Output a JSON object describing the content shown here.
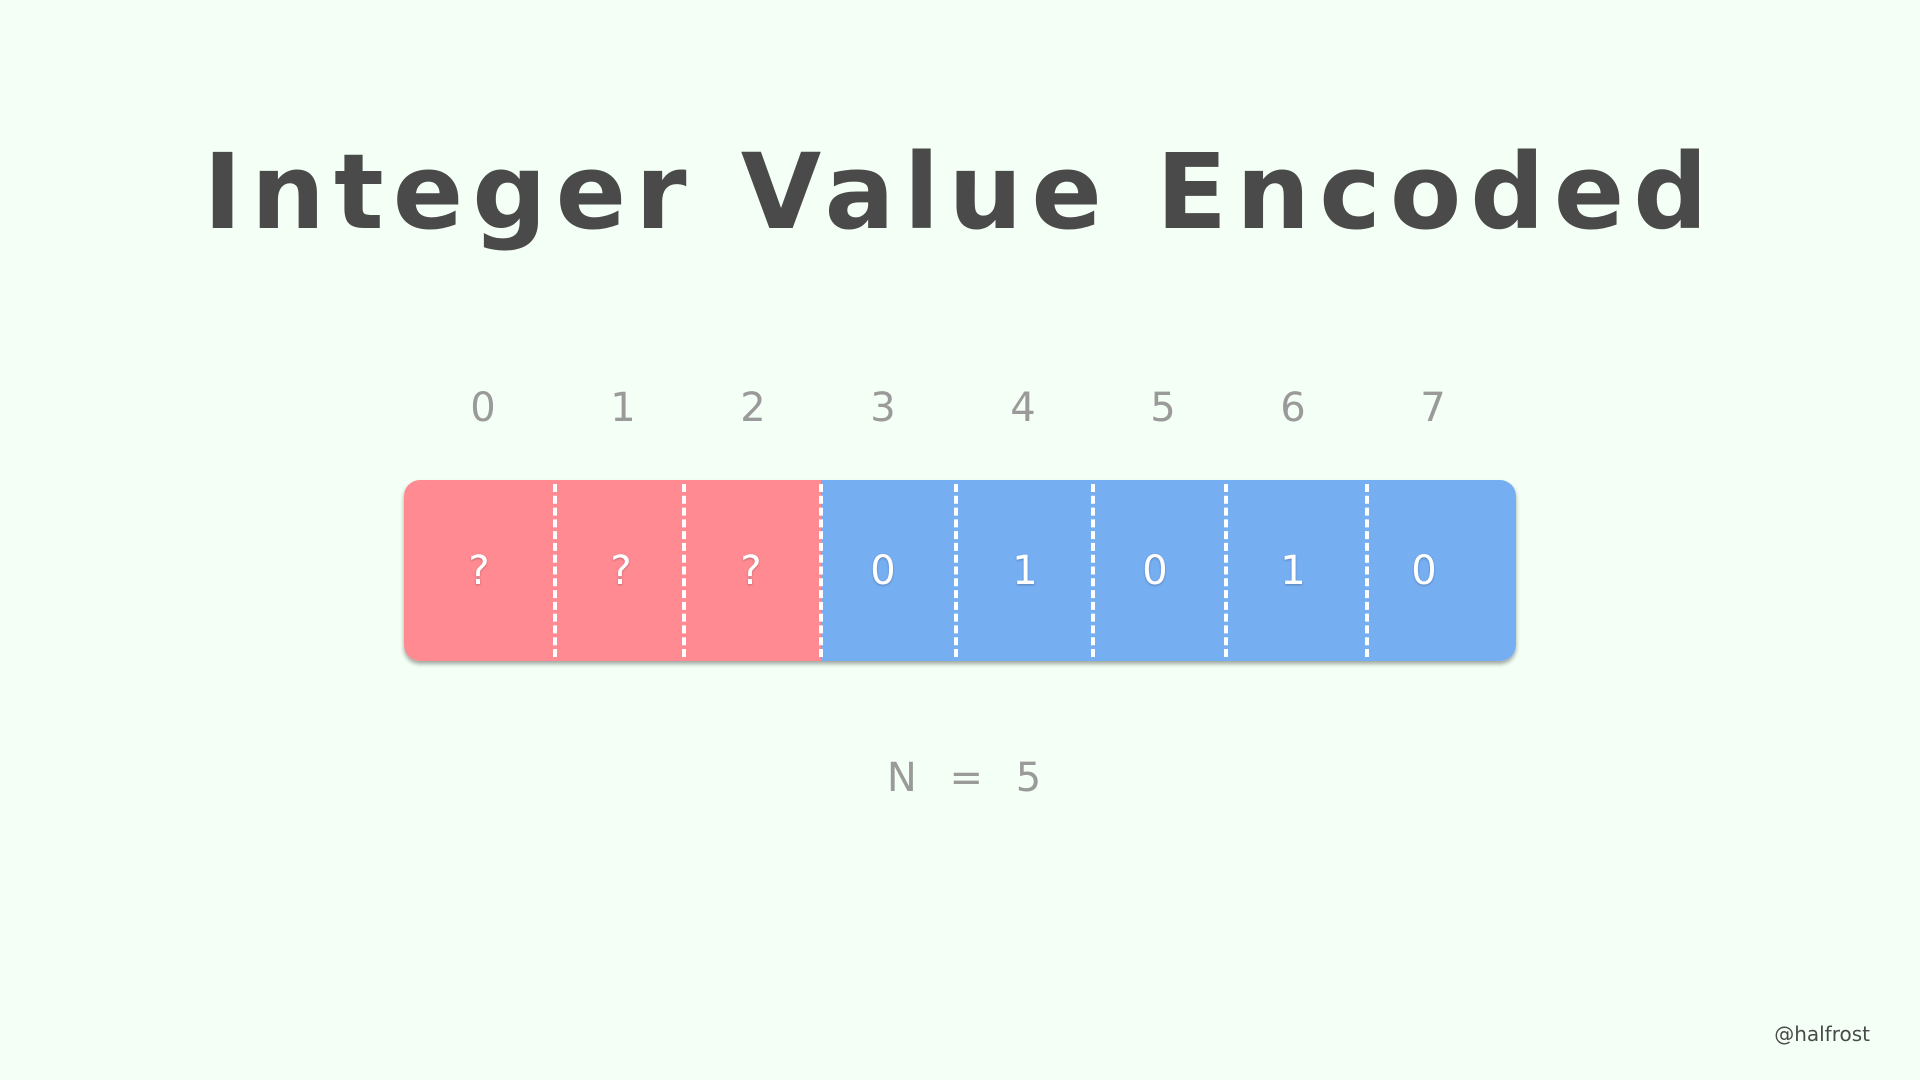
{
  "title": "Integer Value Encoded",
  "bit_indices": [
    "0",
    "1",
    "2",
    "3",
    "4",
    "5",
    "6",
    "7"
  ],
  "bits": [
    {
      "value": "?",
      "kind": "unused"
    },
    {
      "value": "?",
      "kind": "unused"
    },
    {
      "value": "?",
      "kind": "unused"
    },
    {
      "value": "0",
      "kind": "encoded"
    },
    {
      "value": "1",
      "kind": "encoded"
    },
    {
      "value": "0",
      "kind": "encoded"
    },
    {
      "value": "1",
      "kind": "encoded"
    },
    {
      "value": "0",
      "kind": "encoded"
    }
  ],
  "colors": {
    "unused": "#ff8a92",
    "encoded": "#76aef2",
    "background": "#f4fff6",
    "title": "#4a4a4a",
    "label": "#9a9a9a"
  },
  "equation": {
    "variable": "N",
    "operator": "=",
    "value": "5"
  },
  "watermark": "@halfrost"
}
